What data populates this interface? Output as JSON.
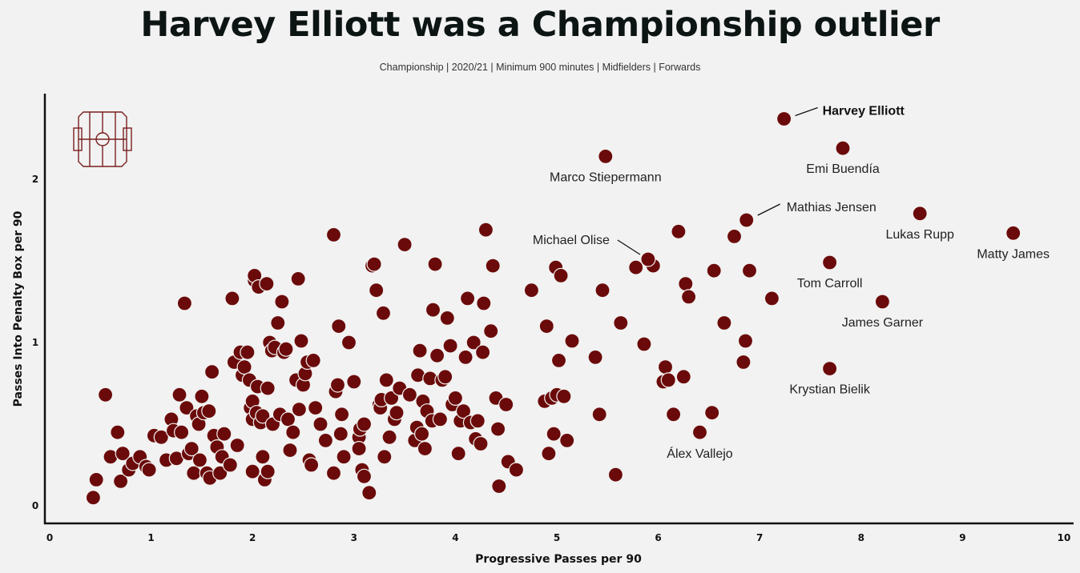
{
  "header": {
    "title": "Harvey Elliott was a Championship outlier",
    "subtitle": "Championship | 2020/21 | Minimum 900 minutes | Midfielders | Forwards"
  },
  "icons": {
    "logo": "football-pitch-icon"
  },
  "colors": {
    "background": "#f1f2f1",
    "marker": "#6b0a0a",
    "logo": "#7a2020"
  },
  "chart_data": {
    "type": "scatter",
    "title": "Harvey Elliott was a Championship outlier",
    "subtitle": "Championship | 2020/21 | Minimum 900 minutes | Midfielders | Forwards",
    "xlabel": "Progressive Passes per 90",
    "ylabel": "Passes Into Penalty Box per 90",
    "xlim": [
      0,
      10
    ],
    "ylim": [
      -0.1,
      2.5
    ],
    "xticks": [
      "0",
      "1",
      "2",
      "3",
      "4",
      "5",
      "6",
      "7",
      "8",
      "9",
      "10"
    ],
    "yticks": [
      "0",
      "1",
      "2"
    ],
    "grid": false,
    "labeled_points": [
      {
        "name": "Harvey Elliott",
        "x": 7.24,
        "y": 2.37,
        "bold": true
      },
      {
        "name": "Emi Buendía",
        "x": 7.82,
        "y": 2.19
      },
      {
        "name": "Marco Stiepermann",
        "x": 5.48,
        "y": 2.14
      },
      {
        "name": "Mathias Jensen",
        "x": 6.87,
        "y": 1.75
      },
      {
        "name": "Lukas Rupp",
        "x": 8.58,
        "y": 1.79
      },
      {
        "name": "Matty James",
        "x": 9.5,
        "y": 1.67
      },
      {
        "name": "Michael Olise",
        "x": 5.9,
        "y": 1.51
      },
      {
        "name": "Tom Carroll",
        "x": 7.69,
        "y": 1.49
      },
      {
        "name": "James Garner",
        "x": 8.21,
        "y": 1.25
      },
      {
        "name": "Krystian Bielik",
        "x": 7.69,
        "y": 0.84
      },
      {
        "name": "Álex Vallejo",
        "x": 6.41,
        "y": 0.45
      }
    ],
    "points": [
      [
        0.43,
        0.05
      ],
      [
        0.46,
        0.16
      ],
      [
        0.55,
        0.68
      ],
      [
        0.6,
        0.3
      ],
      [
        0.67,
        0.45
      ],
      [
        0.7,
        0.15
      ],
      [
        0.72,
        0.32
      ],
      [
        0.78,
        0.22
      ],
      [
        0.82,
        0.26
      ],
      [
        0.89,
        0.3
      ],
      [
        0.95,
        0.24
      ],
      [
        0.98,
        0.22
      ],
      [
        1.03,
        0.43
      ],
      [
        1.1,
        0.42
      ],
      [
        1.15,
        0.28
      ],
      [
        1.2,
        0.53
      ],
      [
        1.22,
        0.46
      ],
      [
        1.25,
        0.29
      ],
      [
        1.28,
        0.68
      ],
      [
        1.3,
        0.45
      ],
      [
        1.33,
        1.24
      ],
      [
        1.35,
        0.6
      ],
      [
        1.37,
        0.32
      ],
      [
        1.4,
        0.35
      ],
      [
        1.42,
        0.2
      ],
      [
        1.45,
        0.55
      ],
      [
        1.47,
        0.5
      ],
      [
        1.48,
        0.28
      ],
      [
        1.5,
        0.67
      ],
      [
        1.52,
        0.57
      ],
      [
        1.55,
        0.2
      ],
      [
        1.57,
        0.58
      ],
      [
        1.58,
        0.17
      ],
      [
        1.6,
        0.82
      ],
      [
        1.62,
        0.43
      ],
      [
        1.65,
        0.36
      ],
      [
        1.68,
        0.2
      ],
      [
        1.7,
        0.3
      ],
      [
        1.72,
        0.44
      ],
      [
        1.78,
        0.25
      ],
      [
        1.8,
        1.27
      ],
      [
        1.82,
        0.88
      ],
      [
        1.85,
        0.37
      ],
      [
        1.88,
        0.94
      ],
      [
        1.9,
        0.8
      ],
      [
        1.92,
        0.85
      ],
      [
        1.95,
        0.94
      ],
      [
        1.97,
        0.77
      ],
      [
        1.98,
        0.6
      ],
      [
        2.0,
        0.53
      ],
      [
        2.0,
        0.64
      ],
      [
        2.0,
        0.21
      ],
      [
        2.02,
        1.38
      ],
      [
        2.02,
        1.41
      ],
      [
        2.04,
        0.57
      ],
      [
        2.05,
        0.73
      ],
      [
        2.06,
        1.34
      ],
      [
        2.08,
        0.51
      ],
      [
        2.1,
        0.3
      ],
      [
        2.1,
        0.55
      ],
      [
        2.12,
        0.16
      ],
      [
        2.14,
        1.36
      ],
      [
        2.15,
        0.21
      ],
      [
        2.15,
        0.72
      ],
      [
        2.17,
        1.0
      ],
      [
        2.19,
        0.95
      ],
      [
        2.2,
        0.5
      ],
      [
        2.22,
        0.97
      ],
      [
        2.25,
        1.12
      ],
      [
        2.27,
        0.56
      ],
      [
        2.29,
        1.25
      ],
      [
        2.31,
        0.94
      ],
      [
        2.33,
        0.96
      ],
      [
        2.35,
        0.53
      ],
      [
        2.37,
        0.34
      ],
      [
        2.4,
        0.45
      ],
      [
        2.43,
        0.77
      ],
      [
        2.45,
        1.39
      ],
      [
        2.46,
        0.59
      ],
      [
        2.48,
        1.01
      ],
      [
        2.5,
        0.74
      ],
      [
        2.52,
        0.81
      ],
      [
        2.54,
        0.88
      ],
      [
        2.56,
        0.28
      ],
      [
        2.58,
        0.25
      ],
      [
        2.6,
        0.89
      ],
      [
        2.62,
        0.6
      ],
      [
        2.67,
        0.5
      ],
      [
        2.72,
        0.4
      ],
      [
        2.8,
        0.2
      ],
      [
        2.8,
        1.66
      ],
      [
        2.82,
        0.7
      ],
      [
        2.84,
        0.74
      ],
      [
        2.85,
        1.1
      ],
      [
        2.87,
        0.44
      ],
      [
        2.88,
        0.56
      ],
      [
        2.9,
        0.3
      ],
      [
        2.95,
        1.0
      ],
      [
        3.0,
        0.76
      ],
      [
        3.05,
        0.42
      ],
      [
        3.05,
        0.35
      ],
      [
        3.06,
        0.47
      ],
      [
        3.08,
        0.22
      ],
      [
        3.1,
        0.18
      ],
      [
        3.1,
        0.5
      ],
      [
        3.15,
        0.08
      ],
      [
        3.18,
        1.47
      ],
      [
        3.2,
        1.48
      ],
      [
        3.22,
        1.32
      ],
      [
        3.25,
        0.62
      ],
      [
        3.26,
        0.6
      ],
      [
        3.27,
        0.65
      ],
      [
        3.29,
        1.18
      ],
      [
        3.3,
        0.3
      ],
      [
        3.32,
        0.77
      ],
      [
        3.35,
        0.42
      ],
      [
        3.37,
        0.66
      ],
      [
        3.4,
        0.53
      ],
      [
        3.42,
        0.57
      ],
      [
        3.45,
        0.72
      ],
      [
        3.5,
        1.6
      ],
      [
        3.55,
        0.68
      ],
      [
        3.6,
        0.4
      ],
      [
        3.62,
        0.48
      ],
      [
        3.63,
        0.8
      ],
      [
        3.65,
        0.95
      ],
      [
        3.67,
        0.44
      ],
      [
        3.68,
        0.64
      ],
      [
        3.7,
        0.35
      ],
      [
        3.72,
        0.58
      ],
      [
        3.75,
        0.78
      ],
      [
        3.77,
        0.52
      ],
      [
        3.78,
        1.2
      ],
      [
        3.8,
        1.48
      ],
      [
        3.82,
        0.92
      ],
      [
        3.85,
        0.53
      ],
      [
        3.87,
        0.77
      ],
      [
        3.9,
        0.79
      ],
      [
        3.92,
        1.15
      ],
      [
        3.95,
        0.98
      ],
      [
        3.97,
        0.62
      ],
      [
        4.0,
        0.66
      ],
      [
        4.03,
        0.32
      ],
      [
        4.05,
        0.52
      ],
      [
        4.08,
        0.58
      ],
      [
        4.1,
        0.91
      ],
      [
        4.12,
        1.27
      ],
      [
        4.15,
        0.51
      ],
      [
        4.18,
        1.0
      ],
      [
        4.2,
        0.41
      ],
      [
        4.22,
        0.52
      ],
      [
        4.25,
        0.38
      ],
      [
        4.27,
        0.94
      ],
      [
        4.28,
        1.24
      ],
      [
        4.3,
        1.69
      ],
      [
        4.35,
        1.07
      ],
      [
        4.37,
        1.47
      ],
      [
        4.4,
        0.66
      ],
      [
        4.42,
        0.47
      ],
      [
        4.43,
        0.12
      ],
      [
        4.5,
        0.62
      ],
      [
        4.52,
        0.27
      ],
      [
        4.6,
        0.22
      ],
      [
        4.75,
        1.32
      ],
      [
        4.88,
        0.64
      ],
      [
        4.9,
        1.1
      ],
      [
        4.92,
        0.32
      ],
      [
        4.95,
        0.66
      ],
      [
        4.97,
        0.44
      ],
      [
        4.99,
        1.46
      ],
      [
        5.0,
        0.68
      ],
      [
        5.02,
        0.89
      ],
      [
        5.04,
        1.41
      ],
      [
        5.07,
        0.67
      ],
      [
        5.1,
        0.4
      ],
      [
        5.15,
        1.01
      ],
      [
        5.38,
        0.91
      ],
      [
        5.42,
        0.56
      ],
      [
        5.45,
        1.32
      ],
      [
        5.58,
        0.19
      ],
      [
        5.63,
        1.12
      ],
      [
        5.78,
        1.46
      ],
      [
        5.86,
        0.99
      ],
      [
        5.95,
        1.47
      ],
      [
        6.05,
        0.76
      ],
      [
        6.07,
        0.85
      ],
      [
        6.1,
        0.77
      ],
      [
        6.15,
        0.56
      ],
      [
        6.2,
        1.68
      ],
      [
        6.25,
        0.79
      ],
      [
        6.27,
        1.36
      ],
      [
        6.3,
        1.28
      ],
      [
        6.53,
        0.57
      ],
      [
        6.55,
        1.44
      ],
      [
        6.65,
        1.12
      ],
      [
        6.75,
        1.65
      ],
      [
        6.84,
        0.88
      ],
      [
        6.86,
        1.01
      ],
      [
        6.9,
        1.44
      ],
      [
        7.12,
        1.27
      ]
    ]
  }
}
